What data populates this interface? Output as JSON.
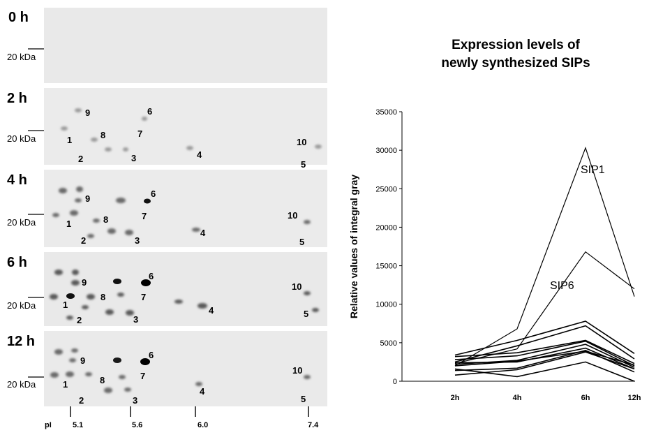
{
  "figure": {
    "marker_label": "20 kDa",
    "panels": [
      {
        "label": "0 h",
        "numbers": []
      },
      {
        "label": "2 h",
        "numbers": [
          "9",
          "6",
          "8",
          "7",
          "1",
          "10",
          "4",
          "2",
          "3",
          "5"
        ]
      },
      {
        "label": "4 h",
        "numbers": [
          "6",
          "9",
          "7",
          "8",
          "10",
          "1",
          "4",
          "2",
          "3",
          "5"
        ]
      },
      {
        "label": "6 h",
        "numbers": [
          "6",
          "9",
          "10",
          "8",
          "7",
          "1",
          "4",
          "5",
          "2",
          "3"
        ]
      },
      {
        "label": "12 h",
        "numbers": [
          "6",
          "9",
          "10",
          "7",
          "8",
          "1",
          "4",
          "2",
          "3",
          "5"
        ]
      }
    ],
    "pi_axis": {
      "label": "pI",
      "ticks": [
        "5.1",
        "5.6",
        "6.0",
        "7.4"
      ]
    }
  },
  "chart_data": {
    "type": "line",
    "title": "Expression levels of newly synthesized SIPs",
    "title_lines": [
      "Expression levels of",
      "newly synthesized SIPs"
    ],
    "ylabel": "Relative values of integral gray",
    "xlabel": "",
    "categories": [
      "2h",
      "4h",
      "6h",
      "12h"
    ],
    "ylim": [
      0,
      35000
    ],
    "yticks": [
      "0",
      "5000",
      "10000",
      "15000",
      "20000",
      "25000",
      "30000",
      "35000"
    ],
    "grid": false,
    "series": [
      {
        "name": "SIP1",
        "values": [
          2000,
          6800,
          30300,
          11000
        ]
      },
      {
        "name": "SIP6",
        "values": [
          2300,
          4200,
          16800,
          12000
        ]
      },
      {
        "values": [
          3400,
          5300,
          7800,
          3600
        ]
      },
      {
        "values": [
          2500,
          4600,
          7200,
          2900
        ]
      },
      {
        "values": [
          3200,
          3700,
          5300,
          2300
        ]
      },
      {
        "values": [
          2800,
          3300,
          5200,
          2000
        ]
      },
      {
        "values": [
          2200,
          2700,
          4800,
          1800
        ]
      },
      {
        "values": [
          2400,
          2500,
          4300,
          1600
        ]
      },
      {
        "values": [
          2000,
          2600,
          3900,
          2100
        ]
      },
      {
        "values": [
          1400,
          1700,
          4000,
          1200
        ]
      },
      {
        "values": [
          800,
          1500,
          3800,
          1600
        ]
      },
      {
        "values": [
          1600,
          600,
          2500,
          0
        ]
      }
    ],
    "annotations": [
      "SIP1",
      "SIP6"
    ]
  }
}
